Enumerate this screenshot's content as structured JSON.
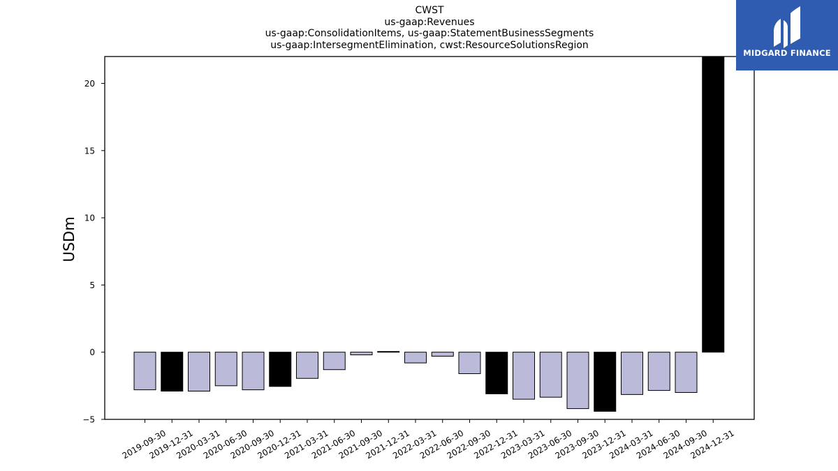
{
  "title_lines": [
    "CWST",
    "us-gaap:Revenues",
    "us-gaap:ConsolidationItems, us-gaap:StatementBusinessSegments",
    "us-gaap:IntersegmentElimination, cwst:ResourceSolutionsRegion"
  ],
  "logo": {
    "text": "MIDGARD FINANCE",
    "background": "#2f5bb0"
  },
  "chart_data": {
    "type": "bar",
    "title": "CWST",
    "ylabel": "USDm",
    "xlabel": "",
    "ylim": [
      -5,
      22
    ],
    "yticks": [
      -5,
      0,
      5,
      10,
      15,
      20
    ],
    "grid": false,
    "colors": {
      "quarter": "#bcbad9",
      "year_end": "#000000",
      "edge": "#000000"
    },
    "categories": [
      "2019-09-30",
      "2019-12-31",
      "2020-03-31",
      "2020-06-30",
      "2020-09-30",
      "2020-12-31",
      "2021-03-31",
      "2021-06-30",
      "2021-09-30",
      "2021-12-31",
      "2022-03-31",
      "2022-06-30",
      "2022-09-30",
      "2022-12-31",
      "2023-03-31",
      "2023-06-30",
      "2023-09-30",
      "2023-12-31",
      "2024-03-31",
      "2024-06-30",
      "2024-09-30",
      "2024-12-31"
    ],
    "values": [
      -2.8,
      -2.9,
      -2.9,
      -2.5,
      -2.8,
      -2.55,
      -1.95,
      -1.3,
      -0.2,
      0.05,
      -0.8,
      -0.3,
      -1.6,
      -3.1,
      -3.5,
      -3.35,
      -4.2,
      -4.4,
      -3.15,
      -2.85,
      -3.0,
      22.0
    ]
  }
}
